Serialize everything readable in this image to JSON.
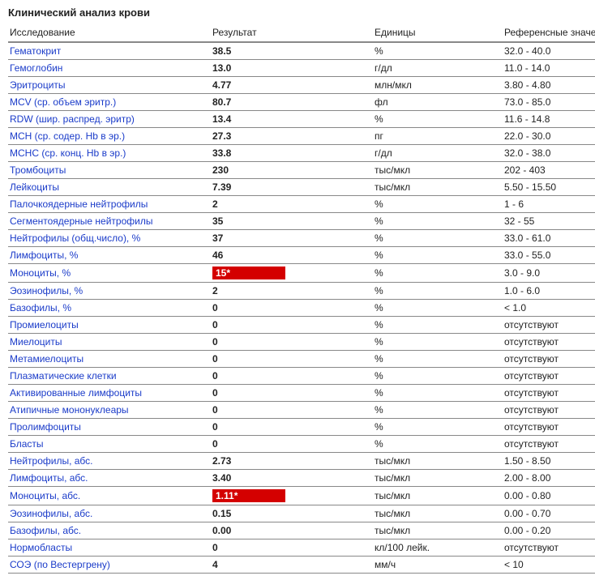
{
  "title": "Клинический анализ крови",
  "columns": {
    "name": "Исследование",
    "result": "Результат",
    "units": "Единицы",
    "ref": "Референсные значе"
  },
  "rows": [
    {
      "name": "Гематокрит",
      "result": "38.5",
      "flag": false,
      "units": "%",
      "ref": "32.0 - 40.0"
    },
    {
      "name": "Гемоглобин",
      "result": "13.0",
      "flag": false,
      "units": "г/дл",
      "ref": "11.0 - 14.0"
    },
    {
      "name": "Эритроциты",
      "result": "4.77",
      "flag": false,
      "units": "млн/мкл",
      "ref": "3.80 - 4.80"
    },
    {
      "name": "MCV (ср. объем эритр.)",
      "result": "80.7",
      "flag": false,
      "units": "фл",
      "ref": "73.0 - 85.0"
    },
    {
      "name": "RDW (шир. распред. эритр)",
      "result": "13.4",
      "flag": false,
      "units": "%",
      "ref": "11.6 - 14.8"
    },
    {
      "name": "MCH (ср. содер. Hb в эр.)",
      "result": "27.3",
      "flag": false,
      "units": "пг",
      "ref": "22.0 - 30.0"
    },
    {
      "name": "MCHC (ср. конц. Hb в эр.)",
      "result": "33.8",
      "flag": false,
      "units": "г/дл",
      "ref": "32.0 - 38.0"
    },
    {
      "name": "Тромбоциты",
      "result": "230",
      "flag": false,
      "units": "тыс/мкл",
      "ref": "202 - 403"
    },
    {
      "name": "Лейкоциты",
      "result": "7.39",
      "flag": false,
      "units": "тыс/мкл",
      "ref": "5.50 - 15.50"
    },
    {
      "name": "Палочкоядерные нейтрофилы",
      "result": "2",
      "flag": false,
      "units": "%",
      "ref": "1 - 6"
    },
    {
      "name": "Сегментоядерные нейтрофилы",
      "result": "35",
      "flag": false,
      "units": "%",
      "ref": "32 - 55"
    },
    {
      "name": "Нейтрофилы (общ.число), %",
      "result": "37",
      "flag": false,
      "units": "%",
      "ref": "33.0 - 61.0"
    },
    {
      "name": "Лимфоциты, %",
      "result": "46",
      "flag": false,
      "units": "%",
      "ref": "33.0 - 55.0"
    },
    {
      "name": "Моноциты, %",
      "result": "15*",
      "flag": true,
      "units": "%",
      "ref": "3.0 - 9.0"
    },
    {
      "name": "Эозинофилы, %",
      "result": "2",
      "flag": false,
      "units": "%",
      "ref": "1.0 - 6.0"
    },
    {
      "name": "Базофилы, %",
      "result": "0",
      "flag": false,
      "units": "%",
      "ref": "< 1.0"
    },
    {
      "name": "Промиелоциты",
      "result": "0",
      "flag": false,
      "units": "%",
      "ref": "отсутствуют"
    },
    {
      "name": "Миелоциты",
      "result": "0",
      "flag": false,
      "units": "%",
      "ref": "отсутствуют"
    },
    {
      "name": "Метамиелоциты",
      "result": "0",
      "flag": false,
      "units": "%",
      "ref": "отсутствуют"
    },
    {
      "name": "Плазматические клетки",
      "result": "0",
      "flag": false,
      "units": "%",
      "ref": "отсутствуют"
    },
    {
      "name": "Активированные лимфоциты",
      "result": "0",
      "flag": false,
      "units": "%",
      "ref": "отсутствуют"
    },
    {
      "name": "Атипичные мононуклеары",
      "result": "0",
      "flag": false,
      "units": "%",
      "ref": "отсутствуют"
    },
    {
      "name": "Пролимфоциты",
      "result": "0",
      "flag": false,
      "units": "%",
      "ref": "отсутствуют"
    },
    {
      "name": "Бласты",
      "result": "0",
      "flag": false,
      "units": "%",
      "ref": "отсутствуют"
    },
    {
      "name": "Нейтрофилы, абс.",
      "result": "2.73",
      "flag": false,
      "units": "тыс/мкл",
      "ref": "1.50 - 8.50"
    },
    {
      "name": "Лимфоциты, абс.",
      "result": "3.40",
      "flag": false,
      "units": "тыс/мкл",
      "ref": "2.00 - 8.00"
    },
    {
      "name": "Моноциты, абс.",
      "result": "1.11*",
      "flag": true,
      "units": "тыс/мкл",
      "ref": "0.00 - 0.80"
    },
    {
      "name": "Эозинофилы, абс.",
      "result": "0.15",
      "flag": false,
      "units": "тыс/мкл",
      "ref": "0.00 - 0.70"
    },
    {
      "name": "Базофилы, абс.",
      "result": "0.00",
      "flag": false,
      "units": "тыс/мкл",
      "ref": "0.00 - 0.20"
    },
    {
      "name": "Нормобласты",
      "result": "0",
      "flag": false,
      "units": "кл/100 лейк.",
      "ref": "отсутствуют"
    },
    {
      "name": "СОЭ (по Вестергрену)",
      "result": "4",
      "flag": false,
      "units": "мм/ч",
      "ref": "< 10"
    }
  ]
}
